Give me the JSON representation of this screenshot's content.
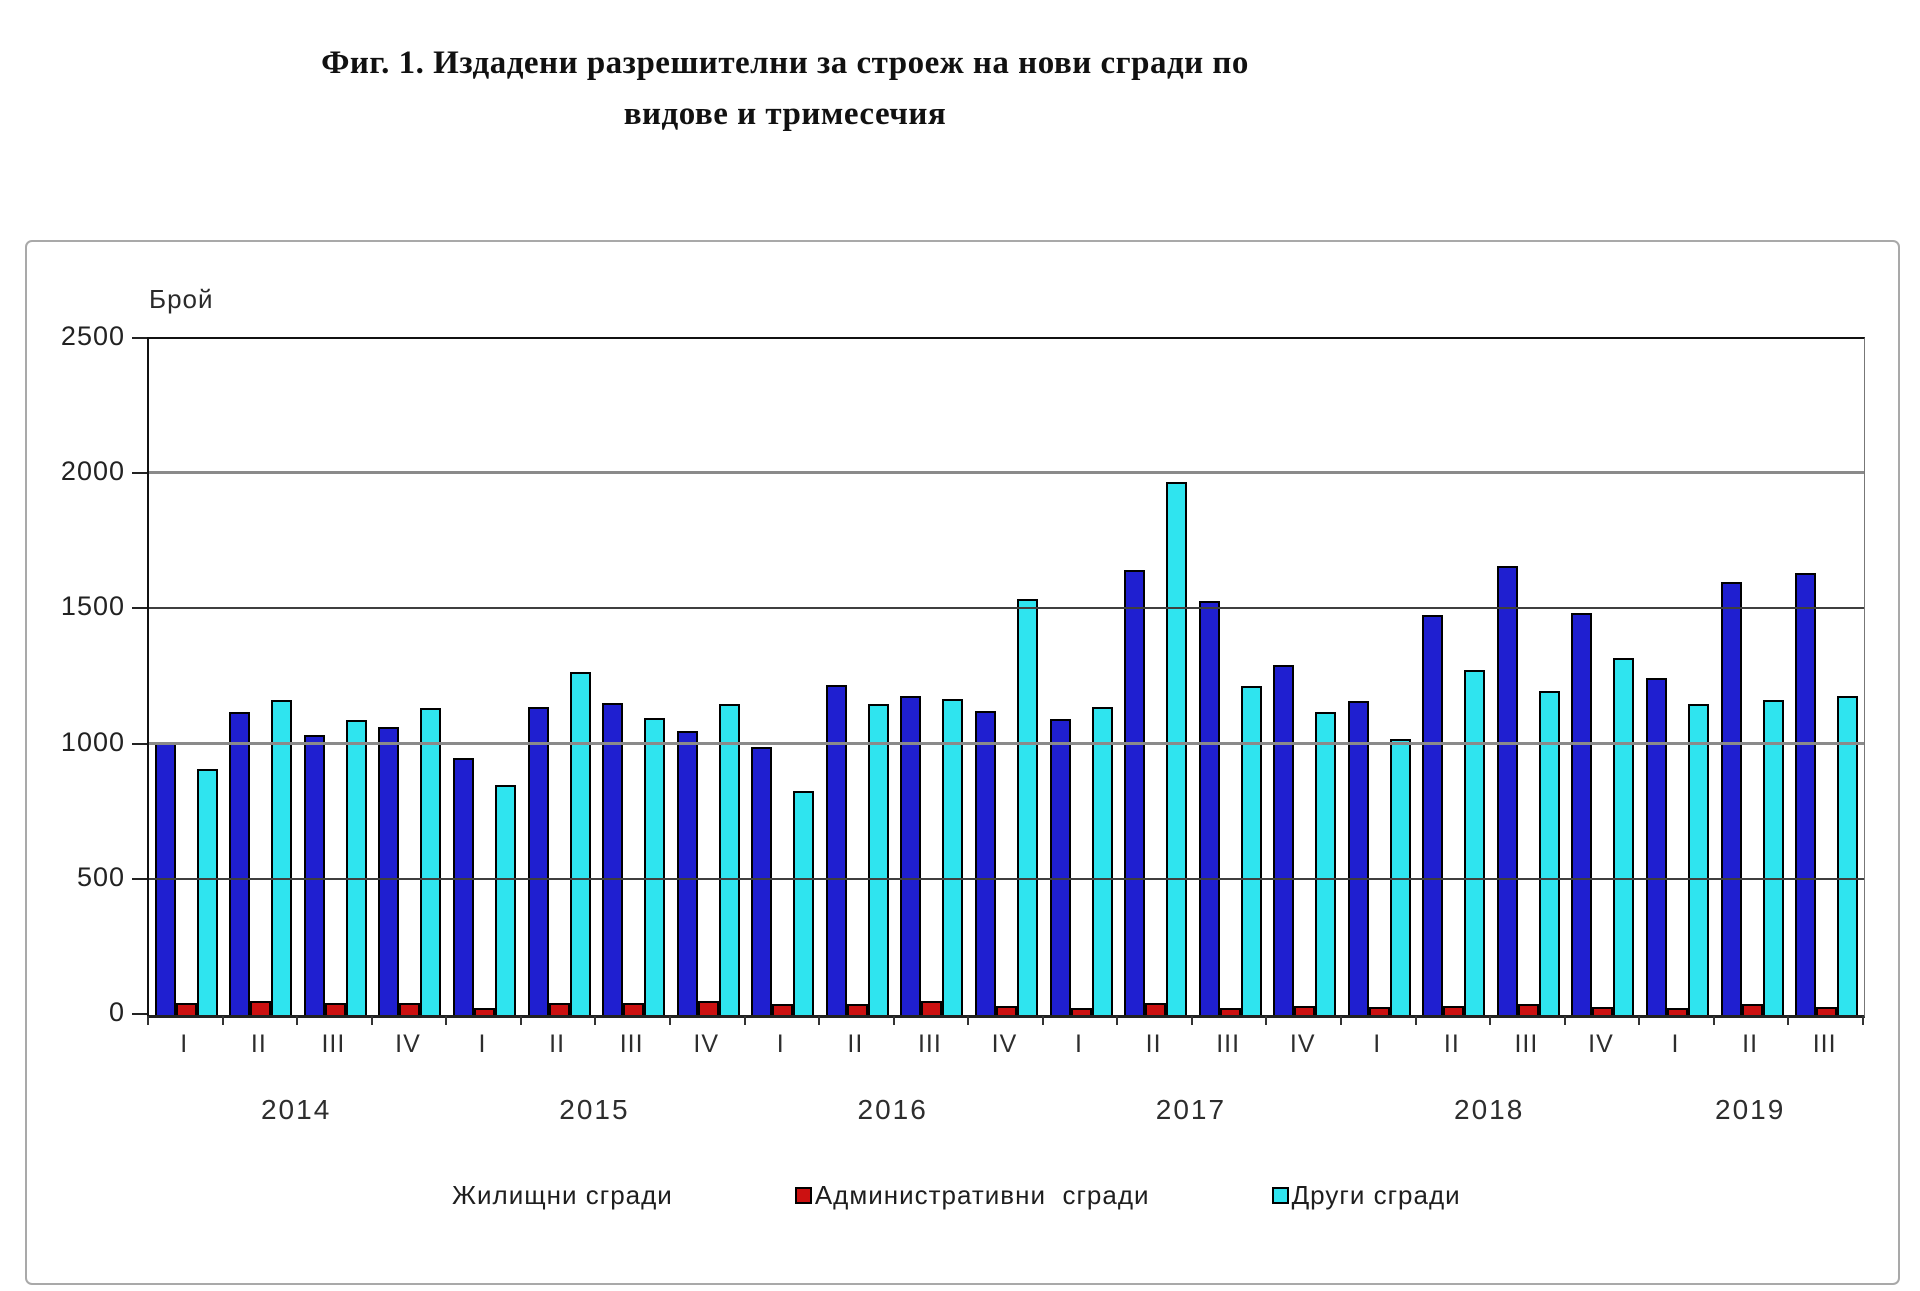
{
  "title": {
    "line1": "Фиг. 1. Издадени разрешителни за строеж на нови сгради по",
    "line2": "видове и тримесечия"
  },
  "chart_data": {
    "type": "bar",
    "title": "Фиг. 1. Издадени разрешителни за строеж на нови сгради по видове и тримесечия",
    "ylabel": "Брой",
    "xlabel": "",
    "ylim": [
      0,
      2500
    ],
    "yticks": [
      0,
      500,
      1000,
      1500,
      2000,
      2500
    ],
    "grid": "horizontal",
    "legend_position": "bottom",
    "series": [
      {
        "key": "residential",
        "name": "Жилищни сгради",
        "color": "#1F1FD0",
        "marker_visible": false
      },
      {
        "key": "administrative",
        "name": "Административни  сгради",
        "color": "#CC1111",
        "marker_visible": true
      },
      {
        "key": "other",
        "name": "Други сгради",
        "color": "#2FE4EF",
        "marker_visible": true
      }
    ],
    "years": [
      {
        "year": "2014",
        "quarters": [
          "I",
          "II",
          "III",
          "IV"
        ],
        "values": [
          [
            1010,
            45,
            910
          ],
          [
            1120,
            50,
            1165
          ],
          [
            1035,
            45,
            1090
          ],
          [
            1065,
            45,
            1135
          ]
        ]
      },
      {
        "year": "2015",
        "quarters": [
          "I",
          "II",
          "III",
          "IV"
        ],
        "values": [
          [
            950,
            25,
            850
          ],
          [
            1140,
            45,
            1270
          ],
          [
            1155,
            45,
            1100
          ],
          [
            1050,
            50,
            1150
          ]
        ]
      },
      {
        "year": "2016",
        "quarters": [
          "I",
          "II",
          "III",
          "IV"
        ],
        "values": [
          [
            990,
            40,
            830
          ],
          [
            1220,
            40,
            1150
          ],
          [
            1180,
            50,
            1170
          ],
          [
            1125,
            35,
            1540
          ]
        ]
      },
      {
        "year": "2017",
        "quarters": [
          "I",
          "II",
          "III",
          "IV"
        ],
        "values": [
          [
            1095,
            25,
            1140
          ],
          [
            1645,
            45,
            1970
          ],
          [
            1530,
            25,
            1215
          ],
          [
            1295,
            35,
            1120
          ]
        ]
      },
      {
        "year": "2018",
        "quarters": [
          "I",
          "II",
          "III",
          "IV"
        ],
        "values": [
          [
            1160,
            30,
            1020
          ],
          [
            1480,
            35,
            1275
          ],
          [
            1660,
            40,
            1200
          ],
          [
            1485,
            30,
            1320
          ]
        ]
      },
      {
        "year": "2019",
        "quarters": [
          "I",
          "II",
          "III"
        ],
        "values": [
          [
            1245,
            25,
            1150
          ],
          [
            1600,
            40,
            1165
          ],
          [
            1635,
            30,
            1180
          ]
        ]
      }
    ]
  }
}
